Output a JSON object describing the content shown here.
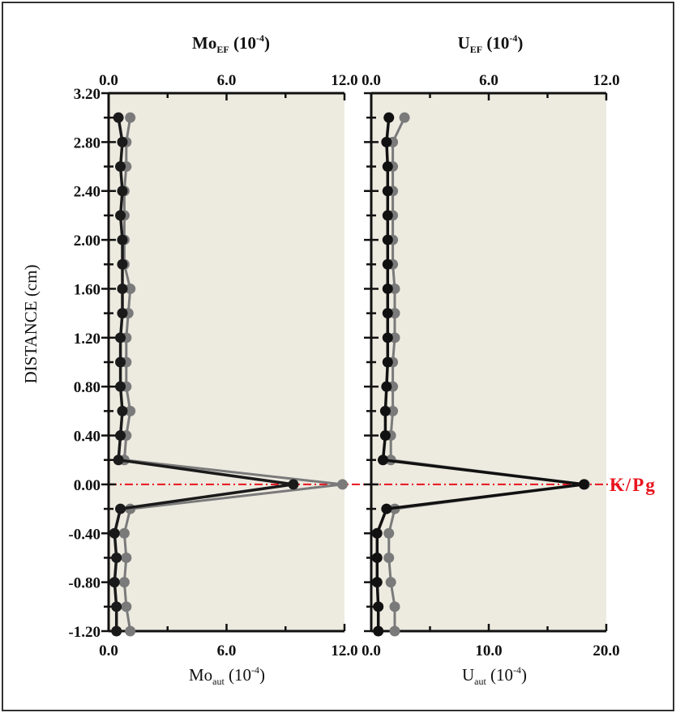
{
  "chart_data": [
    {
      "type": "line",
      "panel": "left",
      "top_axis_title": {
        "main": "Mo",
        "sub": "EF",
        "rest": " (10",
        "sup": "-4",
        "close": ")"
      },
      "bottom_axis_title": {
        "main": "Mo",
        "sub": "aut",
        "rest": " (10",
        "sup": "-4",
        "close": ")"
      },
      "top_ticks": [
        "0.0",
        "6.0",
        "12.0"
      ],
      "bottom_ticks": [
        "0.0",
        "6.0",
        "12.0"
      ],
      "top_range": [
        0,
        12
      ],
      "bottom_range": [
        0,
        12
      ],
      "ylim": [
        -1.2,
        3.2
      ],
      "ylabel": "DISTANCE (cm)",
      "y": [
        3.0,
        2.8,
        2.6,
        2.4,
        2.2,
        2.0,
        1.8,
        1.6,
        1.4,
        1.2,
        1.0,
        0.8,
        0.6,
        0.4,
        0.2,
        0.0,
        -0.2,
        -0.4,
        -0.6,
        -0.8,
        -1.0,
        -1.2
      ],
      "series": [
        {
          "axis": "top",
          "color": "#7a7a7a",
          "values": [
            1.1,
            0.9,
            0.9,
            0.8,
            0.8,
            0.8,
            0.8,
            1.1,
            1.0,
            0.9,
            0.9,
            0.9,
            1.1,
            0.9,
            0.8,
            11.9,
            1.1,
            0.8,
            0.9,
            0.8,
            0.9,
            1.1
          ]
        },
        {
          "axis": "bottom",
          "color": "#1a1a1a",
          "values": [
            0.5,
            0.7,
            0.6,
            0.7,
            0.6,
            0.7,
            0.7,
            0.7,
            0.7,
            0.6,
            0.6,
            0.6,
            0.7,
            0.6,
            0.5,
            9.4,
            0.6,
            0.3,
            0.4,
            0.3,
            0.4,
            0.4
          ]
        }
      ]
    },
    {
      "type": "line",
      "panel": "right",
      "top_axis_title": {
        "main": "U",
        "sub": "EF",
        "rest": " (10",
        "sup": "-4",
        "close": ")"
      },
      "bottom_axis_title": {
        "main": "U",
        "sub": "aut",
        "rest": " (10",
        "sup": "-4",
        "close": ")"
      },
      "top_ticks": [
        "0.0",
        "6.0",
        "12.0"
      ],
      "bottom_ticks": [
        "0.0",
        "10.0",
        "20.0"
      ],
      "top_range": [
        0,
        12
      ],
      "bottom_range": [
        0,
        20
      ],
      "ylim": [
        -1.2,
        3.2
      ],
      "y": [
        3.0,
        2.8,
        2.6,
        2.4,
        2.2,
        2.0,
        1.8,
        1.6,
        1.4,
        1.2,
        1.0,
        0.8,
        0.6,
        0.4,
        0.2,
        0.0,
        -0.2,
        -0.4,
        -0.6,
        -0.8,
        -1.0,
        -1.2
      ],
      "series": [
        {
          "axis": "top",
          "color": "#7a7a7a",
          "values": [
            1.7,
            1.1,
            1.1,
            1.1,
            1.1,
            1.1,
            1.1,
            1.2,
            1.2,
            1.2,
            1.1,
            1.1,
            1.1,
            1.0,
            1.0,
            10.9,
            1.2,
            0.9,
            0.9,
            1.0,
            1.2,
            1.2
          ]
        },
        {
          "axis": "bottom",
          "color": "#111111",
          "values": [
            1.5,
            1.3,
            1.4,
            1.4,
            1.4,
            1.4,
            1.4,
            1.4,
            1.4,
            1.4,
            1.4,
            1.3,
            1.2,
            1.2,
            1.0,
            18.1,
            1.3,
            0.5,
            0.5,
            0.5,
            0.6,
            0.6
          ]
        }
      ]
    }
  ],
  "y_ticks": [
    "3.20",
    "2.80",
    "2.40",
    "2.00",
    "1.60",
    "1.20",
    "0.80",
    "0.40",
    "0.00",
    "-0.40",
    "-0.80",
    "-1.20"
  ],
  "boundary": {
    "label": "K/Pg",
    "y": 0.0,
    "color": "#e8141e"
  },
  "colors": {
    "panel_bg": "#edeae0",
    "frame": "#333333",
    "axis": "#111111"
  }
}
